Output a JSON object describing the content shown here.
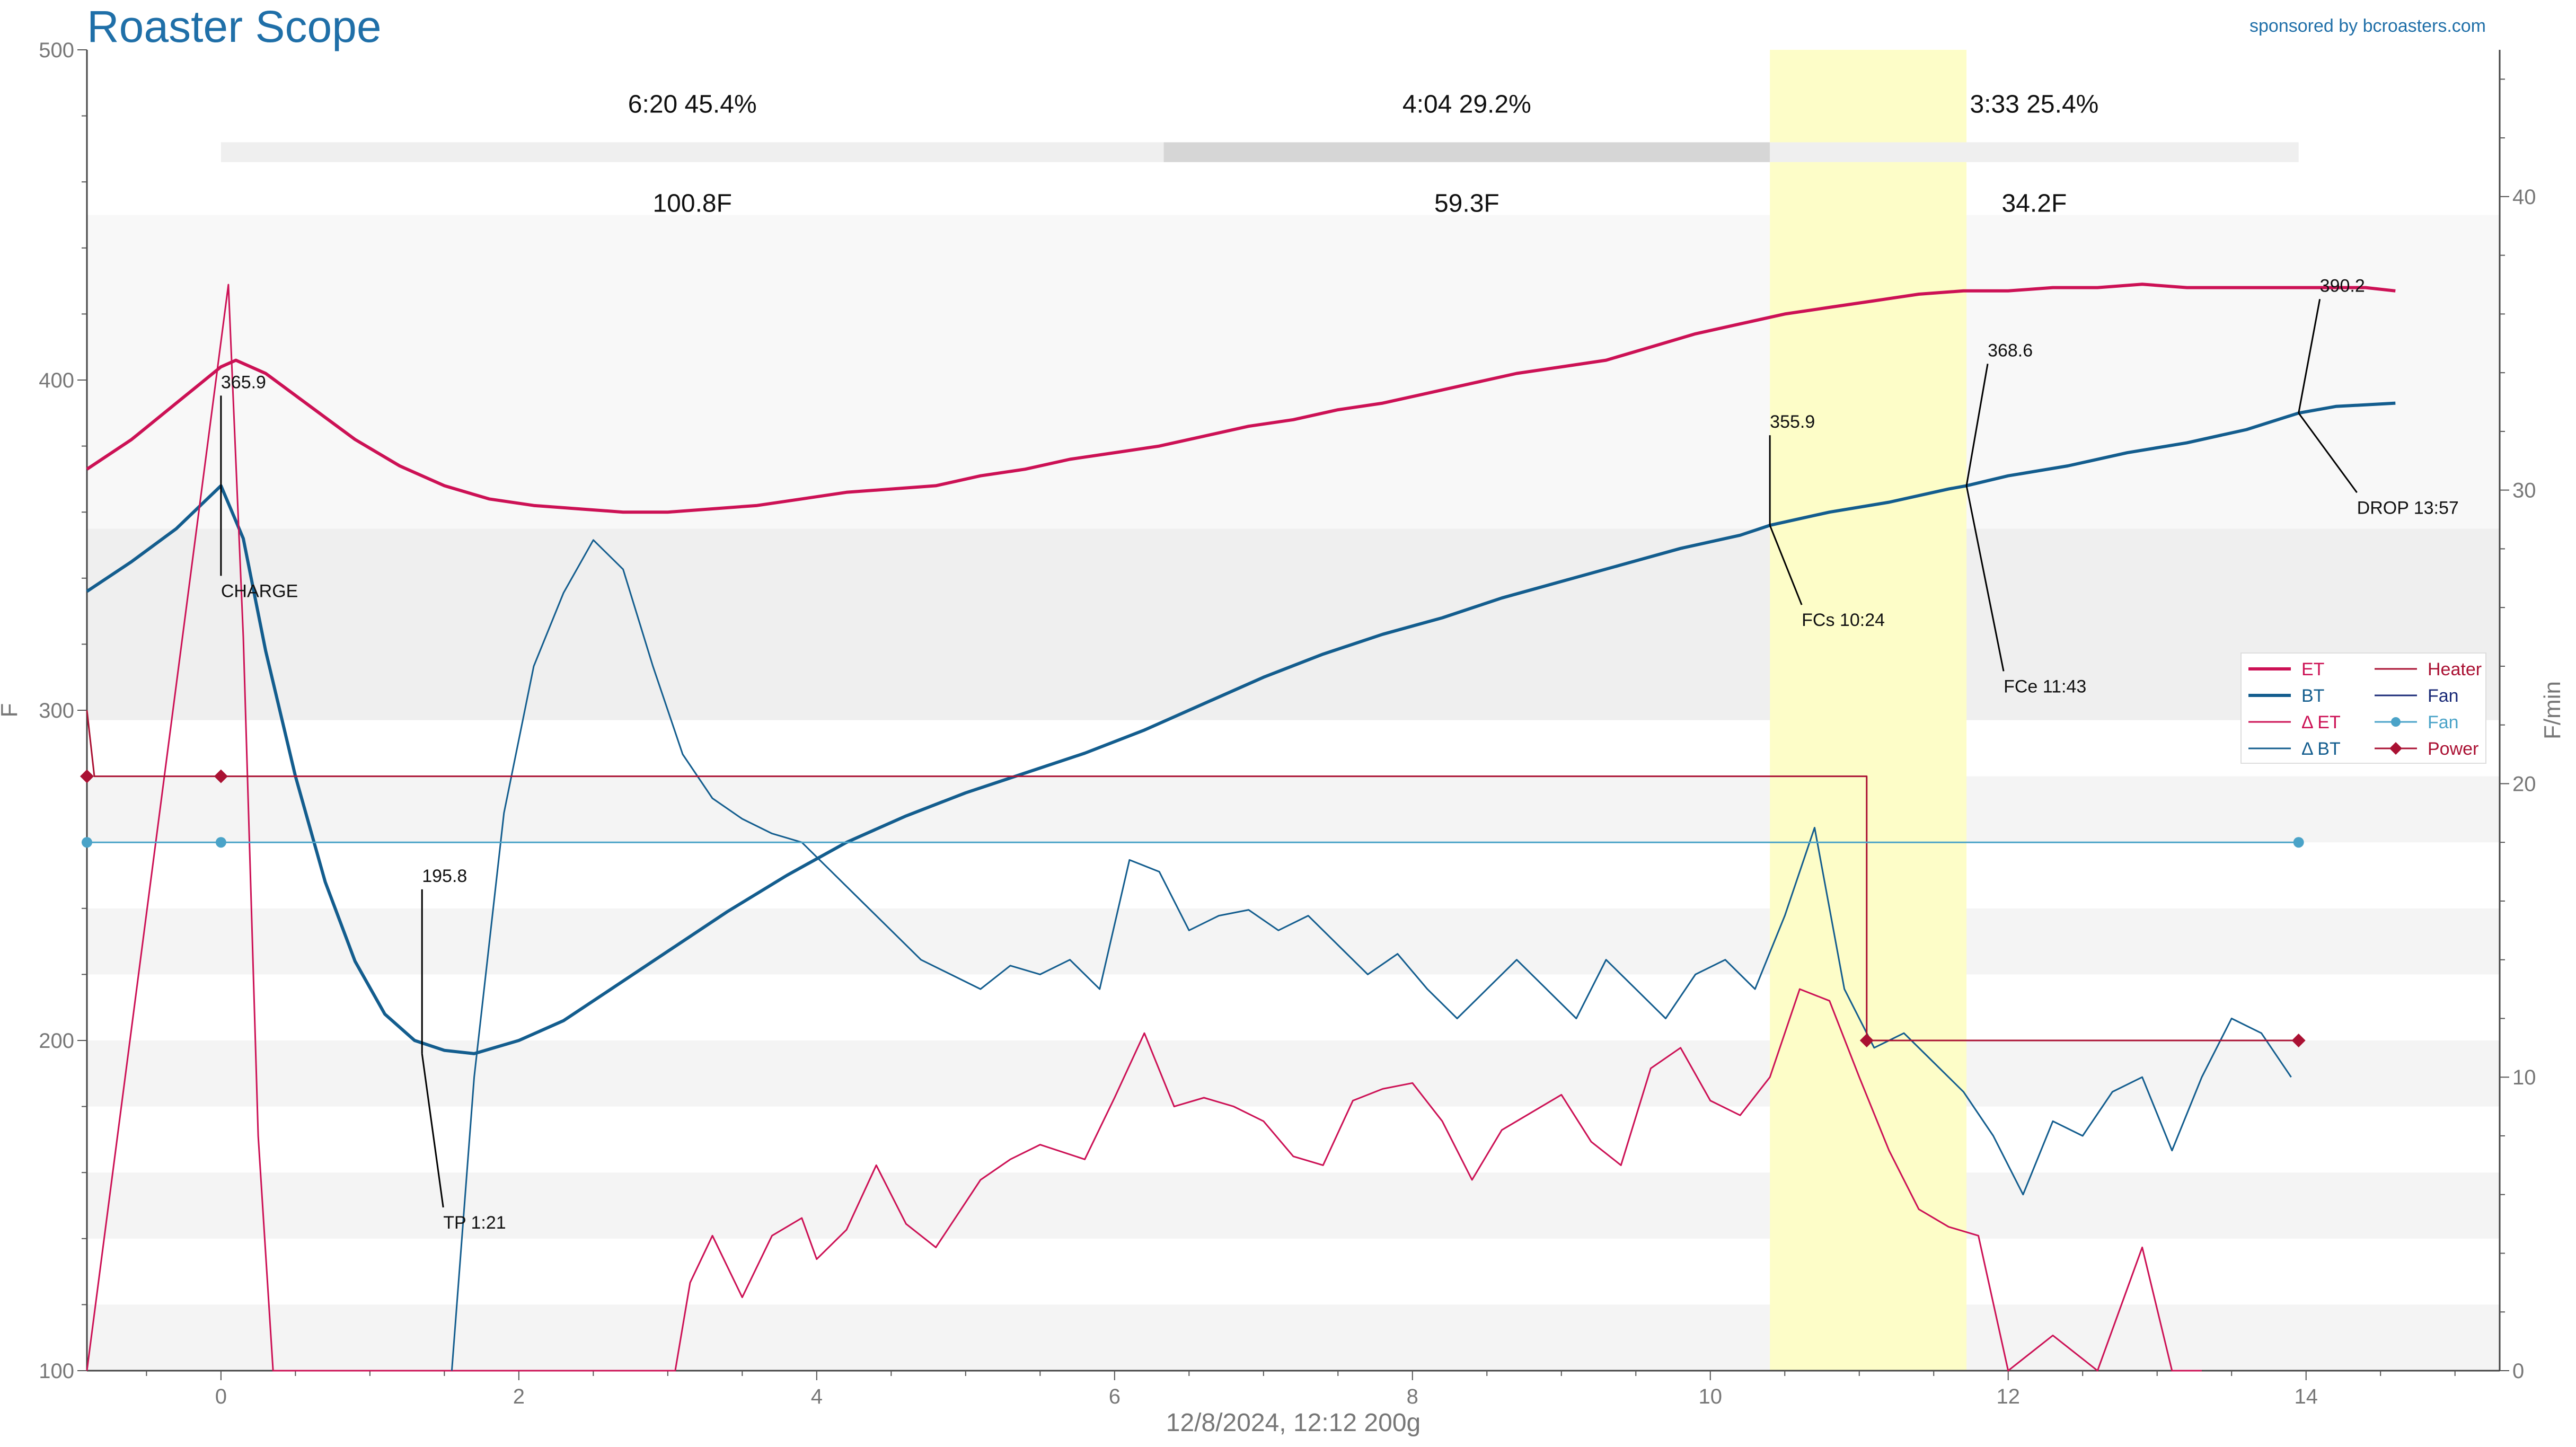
{
  "app": {
    "title": "Roaster Scope",
    "sponsor": "sponsored by bcroasters.com"
  },
  "chart_data": {
    "type": "line",
    "footer": "12/8/2024, 12:12   200g",
    "xlim": [
      -0.9,
      15.3
    ],
    "x_ticks": [
      0,
      2,
      4,
      6,
      8,
      10,
      12,
      14
    ],
    "y_left": {
      "label": "F",
      "lim": [
        100,
        500
      ],
      "ticks": [
        100,
        200,
        300,
        400,
        500
      ]
    },
    "y_right": {
      "label": "F/min",
      "lim": [
        0,
        45
      ],
      "ticks": [
        0,
        10,
        20,
        30,
        40
      ]
    },
    "phases": [
      {
        "time": "6:20",
        "pct": "45.4%",
        "delta": "100.8F",
        "start": 0,
        "end": 6.33,
        "color": "#efefef"
      },
      {
        "time": "4:04",
        "pct": "29.2%",
        "delta": "59.3F",
        "start": 6.33,
        "end": 10.4,
        "color": "#d6d6d6"
      },
      {
        "time": "3:33",
        "pct": "25.4%",
        "delta": "34.2F",
        "start": 10.4,
        "end": 13.95,
        "color": "#efefef"
      }
    ],
    "first_crack_band": [
      10.4,
      11.72
    ],
    "series": [
      {
        "name": "ET",
        "axis": "left",
        "color": "#cc1155",
        "width": 6,
        "points": [
          [
            -0.9,
            373
          ],
          [
            -0.6,
            382
          ],
          [
            -0.3,
            393
          ],
          [
            0,
            404
          ],
          [
            0.1,
            406
          ],
          [
            0.3,
            402
          ],
          [
            0.6,
            392
          ],
          [
            0.9,
            382
          ],
          [
            1.2,
            374
          ],
          [
            1.5,
            368
          ],
          [
            1.8,
            364
          ],
          [
            2.1,
            362
          ],
          [
            2.4,
            361
          ],
          [
            2.7,
            360
          ],
          [
            3.0,
            360
          ],
          [
            3.3,
            361
          ],
          [
            3.6,
            362
          ],
          [
            3.9,
            364
          ],
          [
            4.2,
            366
          ],
          [
            4.5,
            367
          ],
          [
            4.8,
            368
          ],
          [
            5.1,
            371
          ],
          [
            5.4,
            373
          ],
          [
            5.7,
            376
          ],
          [
            6.0,
            378
          ],
          [
            6.3,
            380
          ],
          [
            6.6,
            383
          ],
          [
            6.9,
            386
          ],
          [
            7.2,
            388
          ],
          [
            7.5,
            391
          ],
          [
            7.8,
            393
          ],
          [
            8.1,
            396
          ],
          [
            8.4,
            399
          ],
          [
            8.7,
            402
          ],
          [
            9.0,
            404
          ],
          [
            9.3,
            406
          ],
          [
            9.6,
            410
          ],
          [
            9.9,
            414
          ],
          [
            10.2,
            417
          ],
          [
            10.5,
            420
          ],
          [
            10.8,
            422
          ],
          [
            11.1,
            424
          ],
          [
            11.4,
            426
          ],
          [
            11.7,
            427
          ],
          [
            12.0,
            427
          ],
          [
            12.3,
            428
          ],
          [
            12.6,
            428
          ],
          [
            12.9,
            429
          ],
          [
            13.2,
            428
          ],
          [
            13.5,
            428
          ],
          [
            13.8,
            428
          ],
          [
            14.1,
            428
          ],
          [
            14.4,
            428
          ],
          [
            14.6,
            427
          ]
        ]
      },
      {
        "name": "BT",
        "axis": "left",
        "color": "#135d8e",
        "width": 6,
        "points": [
          [
            -0.9,
            336
          ],
          [
            -0.6,
            345
          ],
          [
            -0.3,
            355
          ],
          [
            0,
            368
          ],
          [
            0.15,
            352
          ],
          [
            0.3,
            318
          ],
          [
            0.5,
            280
          ],
          [
            0.7,
            248
          ],
          [
            0.9,
            224
          ],
          [
            1.1,
            208
          ],
          [
            1.3,
            200
          ],
          [
            1.5,
            197
          ],
          [
            1.7,
            196
          ],
          [
            2.0,
            200
          ],
          [
            2.3,
            206
          ],
          [
            2.6,
            215
          ],
          [
            3.0,
            227
          ],
          [
            3.4,
            239
          ],
          [
            3.8,
            250
          ],
          [
            4.2,
            260
          ],
          [
            4.6,
            268
          ],
          [
            5.0,
            275
          ],
          [
            5.4,
            281
          ],
          [
            5.8,
            287
          ],
          [
            6.2,
            294
          ],
          [
            6.6,
            302
          ],
          [
            7.0,
            310
          ],
          [
            7.4,
            317
          ],
          [
            7.8,
            323
          ],
          [
            8.2,
            328
          ],
          [
            8.6,
            334
          ],
          [
            9.0,
            339
          ],
          [
            9.4,
            344
          ],
          [
            9.8,
            349
          ],
          [
            10.2,
            353
          ],
          [
            10.4,
            356
          ],
          [
            10.8,
            360
          ],
          [
            11.2,
            363
          ],
          [
            11.6,
            367
          ],
          [
            11.72,
            368
          ],
          [
            12.0,
            371
          ],
          [
            12.4,
            374
          ],
          [
            12.8,
            378
          ],
          [
            13.2,
            381
          ],
          [
            13.6,
            385
          ],
          [
            13.95,
            390
          ],
          [
            14.2,
            392
          ],
          [
            14.6,
            393
          ]
        ]
      },
      {
        "name": "ΔET",
        "axis": "right",
        "color": "#cc1155",
        "width": 3,
        "points": [
          [
            -0.9,
            0
          ],
          [
            0.05,
            37
          ],
          [
            0.15,
            25
          ],
          [
            0.25,
            8
          ],
          [
            0.35,
            0
          ],
          [
            3.05,
            0
          ],
          [
            3.15,
            3
          ],
          [
            3.3,
            4.6
          ],
          [
            3.5,
            2.5
          ],
          [
            3.7,
            4.6
          ],
          [
            3.9,
            5.2
          ],
          [
            4.0,
            3.8
          ],
          [
            4.2,
            4.8
          ],
          [
            4.4,
            7
          ],
          [
            4.6,
            5
          ],
          [
            4.8,
            4.2
          ],
          [
            5.1,
            6.5
          ],
          [
            5.3,
            7.2
          ],
          [
            5.5,
            7.7
          ],
          [
            5.8,
            7.2
          ],
          [
            6.0,
            9.3
          ],
          [
            6.2,
            11.5
          ],
          [
            6.4,
            9
          ],
          [
            6.6,
            9.3
          ],
          [
            6.8,
            9
          ],
          [
            7.0,
            8.5
          ],
          [
            7.2,
            7.3
          ],
          [
            7.4,
            7
          ],
          [
            7.6,
            9.2
          ],
          [
            7.8,
            9.6
          ],
          [
            8.0,
            9.8
          ],
          [
            8.2,
            8.5
          ],
          [
            8.4,
            6.5
          ],
          [
            8.6,
            8.2
          ],
          [
            8.8,
            8.8
          ],
          [
            9.0,
            9.4
          ],
          [
            9.2,
            7.8
          ],
          [
            9.4,
            7
          ],
          [
            9.6,
            10.3
          ],
          [
            9.8,
            11
          ],
          [
            10.0,
            9.2
          ],
          [
            10.2,
            8.7
          ],
          [
            10.4,
            10
          ],
          [
            10.6,
            13
          ],
          [
            10.8,
            12.6
          ],
          [
            11.0,
            10
          ],
          [
            11.2,
            7.5
          ],
          [
            11.4,
            5.5
          ],
          [
            11.6,
            4.9
          ],
          [
            11.8,
            4.6
          ],
          [
            12.0,
            0
          ],
          [
            12.3,
            1.2
          ],
          [
            12.6,
            0
          ],
          [
            12.9,
            4.2
          ],
          [
            13.1,
            0
          ],
          [
            13.3,
            0
          ]
        ]
      },
      {
        "name": "ΔBT",
        "axis": "right",
        "color": "#135d8e",
        "width": 3,
        "points": [
          [
            1.55,
            0
          ],
          [
            1.7,
            10
          ],
          [
            1.9,
            19
          ],
          [
            2.1,
            24
          ],
          [
            2.3,
            26.5
          ],
          [
            2.5,
            28.3
          ],
          [
            2.7,
            27.3
          ],
          [
            2.9,
            24
          ],
          [
            3.1,
            21
          ],
          [
            3.3,
            19.5
          ],
          [
            3.5,
            18.8
          ],
          [
            3.7,
            18.3
          ],
          [
            3.9,
            18
          ],
          [
            4.1,
            17
          ],
          [
            4.3,
            16
          ],
          [
            4.5,
            15
          ],
          [
            4.7,
            14
          ],
          [
            4.9,
            13.5
          ],
          [
            5.1,
            13
          ],
          [
            5.3,
            13.8
          ],
          [
            5.5,
            13.5
          ],
          [
            5.7,
            14
          ],
          [
            5.9,
            13
          ],
          [
            6.1,
            17.4
          ],
          [
            6.3,
            17
          ],
          [
            6.5,
            15
          ],
          [
            6.7,
            15.5
          ],
          [
            6.9,
            15.7
          ],
          [
            7.1,
            15
          ],
          [
            7.3,
            15.5
          ],
          [
            7.5,
            14.5
          ],
          [
            7.7,
            13.5
          ],
          [
            7.9,
            14.2
          ],
          [
            8.1,
            13
          ],
          [
            8.3,
            12
          ],
          [
            8.5,
            13
          ],
          [
            8.7,
            14
          ],
          [
            8.9,
            13
          ],
          [
            9.1,
            12
          ],
          [
            9.3,
            14
          ],
          [
            9.5,
            13
          ],
          [
            9.7,
            12
          ],
          [
            9.9,
            13.5
          ],
          [
            10.1,
            14
          ],
          [
            10.3,
            13
          ],
          [
            10.5,
            15.5
          ],
          [
            10.7,
            18.5
          ],
          [
            10.9,
            13
          ],
          [
            11.1,
            11
          ],
          [
            11.3,
            11.5
          ],
          [
            11.5,
            10.5
          ],
          [
            11.7,
            9.5
          ],
          [
            11.9,
            8
          ],
          [
            12.1,
            6
          ],
          [
            12.3,
            8.5
          ],
          [
            12.5,
            8
          ],
          [
            12.7,
            9.5
          ],
          [
            12.9,
            10
          ],
          [
            13.1,
            7.5
          ],
          [
            13.3,
            10
          ],
          [
            13.5,
            12
          ],
          [
            13.7,
            11.5
          ],
          [
            13.9,
            10
          ]
        ]
      },
      {
        "name": "Heater",
        "axis": "left",
        "color": "#aa1133",
        "width": 3,
        "points": [
          [
            -0.9,
            300
          ],
          [
            -0.85,
            280
          ],
          [
            11.05,
            280
          ],
          [
            11.05,
            200
          ],
          [
            13.95,
            200
          ]
        ]
      },
      {
        "name": "Fan",
        "axis": "left",
        "color": "#4aa3c8",
        "width": 3,
        "markers": [
          [
            -0.9,
            260
          ],
          [
            0,
            260
          ],
          [
            13.95,
            260
          ]
        ],
        "points": [
          [
            -0.9,
            260
          ],
          [
            13.95,
            260
          ]
        ]
      },
      {
        "name": "Power",
        "axis": "left",
        "color": "#aa1133",
        "width": 3,
        "markers": [
          [
            -0.9,
            280
          ],
          [
            0,
            280
          ],
          [
            11.05,
            200
          ],
          [
            13.95,
            200
          ]
        ],
        "points": []
      }
    ],
    "annotations": [
      {
        "label": "CHARGE",
        "value": "365.9",
        "x": 0,
        "y": 368
      },
      {
        "label": "TP 1:21",
        "value": "195.8",
        "x": 1.35,
        "y": 196
      },
      {
        "label": "FCs 10:24",
        "value": "355.9",
        "x": 10.4,
        "y": 356
      },
      {
        "label": "FCe 11:43",
        "value": "368.6",
        "x": 11.72,
        "y": 368
      },
      {
        "label": "DROP 13:57",
        "value": "390.2",
        "x": 13.95,
        "y": 390
      }
    ],
    "legend": {
      "placement": "right",
      "entries": [
        {
          "name": "ET",
          "color": "#cc1155",
          "style": "thick"
        },
        {
          "name": "BT",
          "color": "#135d8e",
          "style": "thick"
        },
        {
          "name": "Δ ET",
          "color": "#cc1155",
          "style": "thin"
        },
        {
          "name": "Δ BT",
          "color": "#135d8e",
          "style": "thin"
        },
        {
          "name": "Heater",
          "color": "#aa1133",
          "style": "thin"
        },
        {
          "name": "Fan",
          "color": "#1a2a77",
          "style": "thin"
        },
        {
          "name": "Fan",
          "color": "#4aa3c8",
          "style": "dot"
        },
        {
          "name": "Power",
          "color": "#aa1133",
          "style": "diamond"
        }
      ]
    }
  }
}
